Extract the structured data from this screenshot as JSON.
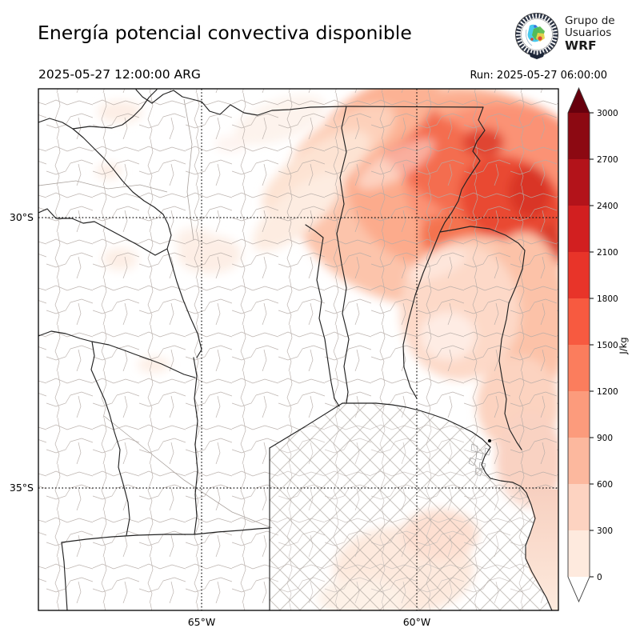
{
  "header": {
    "title": "Energía potencial convectiva disponible",
    "valid_time": "2025-05-27 12:00:00 ARG",
    "run_label": "Run: 2025-05-27 06:00:00"
  },
  "logo": {
    "line1": "Grupo de",
    "line2": "Usuarios",
    "line3": "WRF"
  },
  "map": {
    "x_ticks": [
      "65°W",
      "60°W"
    ],
    "y_ticks": [
      "30°S",
      "35°S"
    ]
  },
  "colorbar": {
    "unit": "J/kg",
    "ticks": [
      "0",
      "300",
      "600",
      "900",
      "1200",
      "1500",
      "1800",
      "2100",
      "2400",
      "2700",
      "3000"
    ],
    "tick_values": [
      0,
      300,
      600,
      900,
      1200,
      1500,
      1800,
      2100,
      2400,
      2700,
      3000
    ],
    "segment_colors": [
      "#feeade",
      "#fdd3c1",
      "#fcb89e",
      "#fc9b7c",
      "#fb7d5d",
      "#f75a40",
      "#e83429",
      "#d21f20",
      "#b3131a",
      "#8c0912"
    ],
    "over_color": "#67000d",
    "under_color": "#ffffff"
  }
}
